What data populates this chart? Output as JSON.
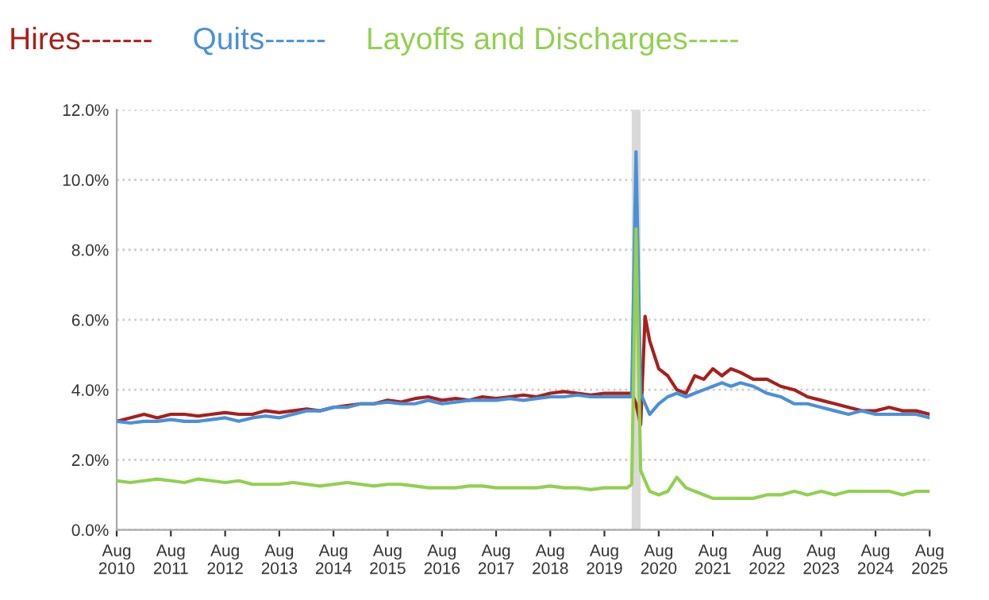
{
  "chart_data": {
    "type": "line",
    "legend": "top",
    "grid": "y",
    "marker": "none",
    "line_style": "solid",
    "x": [
      "2010-08",
      "2010-11",
      "2011-02",
      "2011-05",
      "2011-08",
      "2011-11",
      "2012-02",
      "2012-05",
      "2012-08",
      "2012-11",
      "2013-02",
      "2013-05",
      "2013-08",
      "2013-11",
      "2014-02",
      "2014-05",
      "2014-08",
      "2014-11",
      "2015-02",
      "2015-05",
      "2015-08",
      "2015-11",
      "2016-02",
      "2016-05",
      "2016-08",
      "2016-11",
      "2017-02",
      "2017-05",
      "2017-08",
      "2017-11",
      "2018-02",
      "2018-05",
      "2018-08",
      "2018-11",
      "2019-02",
      "2019-05",
      "2019-08",
      "2019-11",
      "2020-01",
      "2020-02",
      "2020-03",
      "2020-04",
      "2020-05",
      "2020-06",
      "2020-08",
      "2020-10",
      "2020-12",
      "2021-02",
      "2021-04",
      "2021-06",
      "2021-08",
      "2021-10",
      "2021-12",
      "2022-02",
      "2022-05",
      "2022-08",
      "2022-11",
      "2023-02",
      "2023-05",
      "2023-08",
      "2023-11",
      "2024-02",
      "2024-05",
      "2024-08",
      "2024-11",
      "2025-02",
      "2025-05",
      "2025-08"
    ],
    "series": [
      {
        "name": "Hires-------",
        "color": "#a8201a",
        "values": [
          3.1,
          3.2,
          3.3,
          3.2,
          3.3,
          3.3,
          3.25,
          3.3,
          3.35,
          3.3,
          3.3,
          3.4,
          3.35,
          3.4,
          3.45,
          3.4,
          3.5,
          3.55,
          3.6,
          3.6,
          3.7,
          3.65,
          3.75,
          3.8,
          3.7,
          3.75,
          3.7,
          3.8,
          3.75,
          3.8,
          3.85,
          3.8,
          3.9,
          3.95,
          3.9,
          3.85,
          3.9,
          3.9,
          3.9,
          3.9,
          3.6,
          3.0,
          6.1,
          5.4,
          4.6,
          4.4,
          4.0,
          3.9,
          4.4,
          4.3,
          4.6,
          4.4,
          4.6,
          4.5,
          4.3,
          4.3,
          4.1,
          4.0,
          3.8,
          3.7,
          3.6,
          3.5,
          3.4,
          3.4,
          3.5,
          3.4,
          3.4,
          3.3
        ]
      },
      {
        "name": "Quits------",
        "color": "#4a90d9",
        "values": [
          3.1,
          3.05,
          3.1,
          3.1,
          3.15,
          3.1,
          3.1,
          3.15,
          3.2,
          3.1,
          3.2,
          3.25,
          3.2,
          3.3,
          3.4,
          3.4,
          3.5,
          3.5,
          3.6,
          3.6,
          3.65,
          3.6,
          3.6,
          3.7,
          3.6,
          3.65,
          3.7,
          3.7,
          3.7,
          3.75,
          3.7,
          3.75,
          3.8,
          3.8,
          3.85,
          3.8,
          3.8,
          3.8,
          3.8,
          3.8,
          10.8,
          3.9,
          3.6,
          3.3,
          3.6,
          3.8,
          3.9,
          3.8,
          3.9,
          4.0,
          4.1,
          4.2,
          4.1,
          4.2,
          4.1,
          3.9,
          3.8,
          3.6,
          3.6,
          3.5,
          3.4,
          3.3,
          3.4,
          3.3,
          3.3,
          3.3,
          3.3,
          3.2
        ]
      },
      {
        "name": "Layoffs and Discharges-----",
        "color": "#92d050",
        "values": [
          1.4,
          1.35,
          1.4,
          1.45,
          1.4,
          1.35,
          1.45,
          1.4,
          1.35,
          1.4,
          1.3,
          1.3,
          1.3,
          1.35,
          1.3,
          1.25,
          1.3,
          1.35,
          1.3,
          1.25,
          1.3,
          1.3,
          1.25,
          1.2,
          1.2,
          1.2,
          1.25,
          1.25,
          1.2,
          1.2,
          1.2,
          1.2,
          1.25,
          1.2,
          1.2,
          1.15,
          1.2,
          1.2,
          1.2,
          1.3,
          8.6,
          1.7,
          1.4,
          1.1,
          1.0,
          1.1,
          1.5,
          1.2,
          1.1,
          1.0,
          0.9,
          0.9,
          0.9,
          0.9,
          0.9,
          1.0,
          1.0,
          1.1,
          1.0,
          1.1,
          1.0,
          1.1,
          1.1,
          1.1,
          1.1,
          1.0,
          1.1,
          1.1
        ]
      }
    ],
    "bands": [
      {
        "axis": "x",
        "from": "2020-02",
        "to": "2020-04",
        "color": "#d9d9d9"
      }
    ],
    "xlim": [
      "2010-08",
      "2025-08"
    ],
    "xticks": [
      {
        "value": "2010-08",
        "label": "Aug\n2010"
      },
      {
        "value": "2011-08",
        "label": "Aug\n2011"
      },
      {
        "value": "2012-08",
        "label": "Aug\n2012"
      },
      {
        "value": "2013-08",
        "label": "Aug\n2013"
      },
      {
        "value": "2014-08",
        "label": "Aug\n2014"
      },
      {
        "value": "2015-08",
        "label": "Aug\n2015"
      },
      {
        "value": "2016-08",
        "label": "Aug\n2016"
      },
      {
        "value": "2017-08",
        "label": "Aug\n2017"
      },
      {
        "value": "2018-08",
        "label": "Aug\n2018"
      },
      {
        "value": "2019-08",
        "label": "Aug\n2019"
      },
      {
        "value": "2020-08",
        "label": "Aug\n2020"
      },
      {
        "value": "2021-08",
        "label": "Aug\n2021"
      },
      {
        "value": "2022-08",
        "label": "Aug\n2022"
      },
      {
        "value": "2023-08",
        "label": "Aug\n2023"
      },
      {
        "value": "2024-08",
        "label": "Aug\n2024"
      },
      {
        "value": "2025-08",
        "label": "Aug\n2025"
      }
    ],
    "ylim": [
      0,
      12
    ],
    "yticks": [
      {
        "value": 0,
        "label": "0.0%"
      },
      {
        "value": 2,
        "label": "2.0%"
      },
      {
        "value": 4,
        "label": "4.0%"
      },
      {
        "value": 6,
        "label": "6.0%"
      },
      {
        "value": 8,
        "label": "8.0%"
      },
      {
        "value": 10,
        "label": "10.0%"
      },
      {
        "value": 12,
        "label": "12.0%"
      }
    ]
  }
}
